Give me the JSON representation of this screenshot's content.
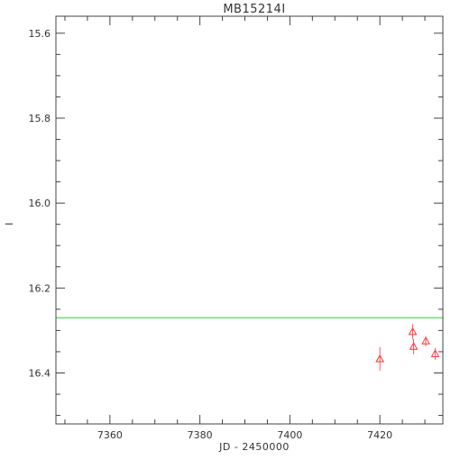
{
  "chart_data": {
    "type": "scatter",
    "title": "MB15214I",
    "xlabel": "JD - 2450000",
    "ylabel": "I",
    "xlim": [
      7348,
      7434
    ],
    "ylim": [
      15.56,
      16.52
    ],
    "y_inverted": true,
    "x_ticks": [
      7360,
      7380,
      7400,
      7420
    ],
    "x_tick_labels": [
      "7360",
      "7380",
      "7400",
      "7420"
    ],
    "x_minor_step": 5,
    "y_ticks": [
      15.6,
      15.8,
      16.0,
      16.2,
      16.4
    ],
    "y_tick_labels": [
      "15.6",
      "15.8",
      "16.0",
      "16.2",
      "16.4"
    ],
    "y_minor_step": 0.05,
    "grid": false,
    "series": [
      {
        "marker": "triangle",
        "color": "#ff3333",
        "points": [
          {
            "x": 7420.0,
            "y": 16.367,
            "err": 0.028
          },
          {
            "x": 7427.3,
            "y": 16.303,
            "err": 0.018
          },
          {
            "x": 7427.5,
            "y": 16.338,
            "err": 0.018
          },
          {
            "x": 7430.2,
            "y": 16.325,
            "err": 0.012
          },
          {
            "x": 7432.3,
            "y": 16.355,
            "err": 0.014
          }
        ]
      }
    ],
    "reference_line": {
      "y": 16.27,
      "color": "#33cc33"
    }
  }
}
